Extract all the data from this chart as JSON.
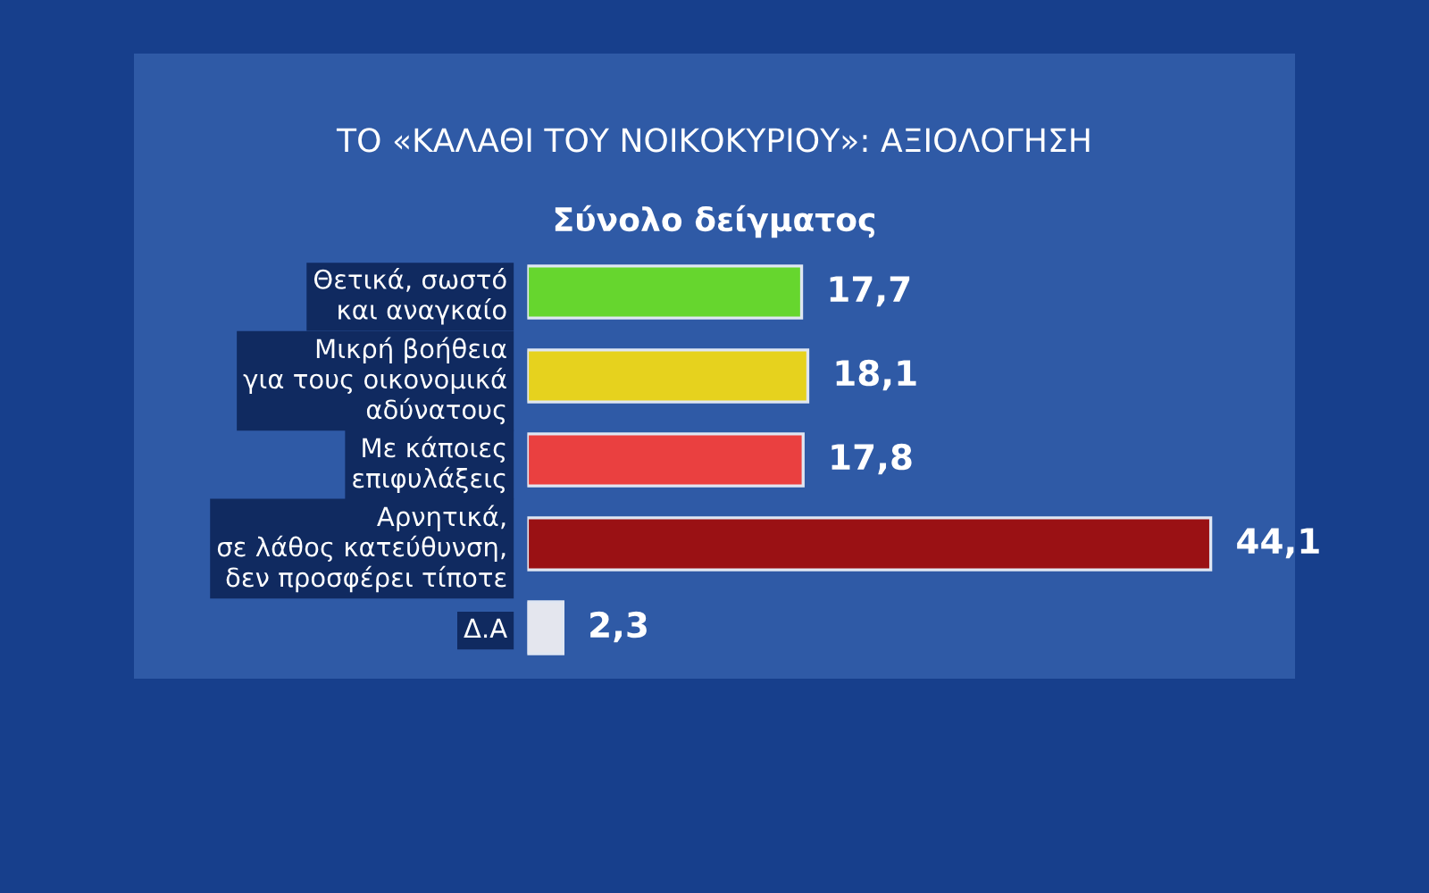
{
  "chart_data": {
    "type": "bar",
    "orientation": "horizontal",
    "title": "ΤΟ «ΚΑΛΑΘΙ ΤΟΥ ΝΟΙΚΟΚΥΡΙΟΥ»: ΑΞΙΟΛΟΓΗΣΗ",
    "subtitle": "Σύνολο δείγματος",
    "categories": [
      "Θετικά, σωστό\nκαι αναγκαίο",
      "Μικρή βοήθεια\nγια τους οικονομικά\nαδύνατους",
      "Με κάποιες\nεπιφυλάξεις",
      "Αρνητικά,\nσε λάθος κατεύθυνση,\nδεν προσφέρει τίποτε",
      "Δ.Α"
    ],
    "values": [
      17.7,
      18.1,
      17.8,
      44.1,
      2.3
    ],
    "value_labels": [
      "17,7",
      "18,1",
      "17,8",
      "44,1",
      "2,3"
    ],
    "colors": [
      "#66d62e",
      "#e6d21e",
      "#ea4040",
      "#9a1114",
      "#e4e6ee"
    ]
  }
}
